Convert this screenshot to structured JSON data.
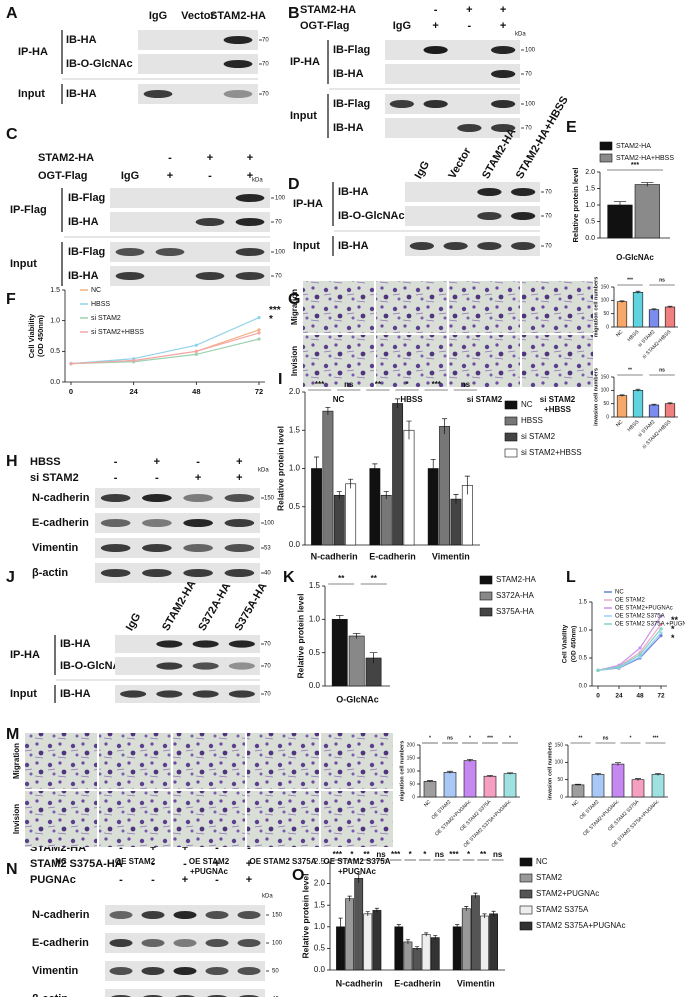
{
  "panels": [
    {
      "letter": "A",
      "headers": [
        "IgG",
        "Vector",
        "STAM2-HA"
      ],
      "groups": [
        {
          "name": "IP-HA",
          "rows": [
            "IB-HA",
            "IB-O-GlcNAc"
          ]
        },
        {
          "name": "Input",
          "rows": [
            "IB-HA"
          ]
        }
      ],
      "mw": [
        "70",
        "70",
        "70"
      ]
    },
    {
      "letter": "B",
      "treatments": [
        {
          "name": "STAM2-HA",
          "signs": [
            null,
            "-",
            "+",
            "+"
          ]
        },
        {
          "name": "OGT-Flag",
          "signs": [
            "IgG",
            "+",
            "-",
            "+"
          ]
        }
      ],
      "units": "kDa",
      "groups": [
        {
          "name": "IP-HA",
          "rows": [
            "IB-Flag",
            "IB-HA"
          ]
        },
        {
          "name": "Input",
          "rows": [
            "IB-Flag",
            "IB-HA"
          ]
        }
      ],
      "mw": [
        "100",
        "70",
        "100",
        "70"
      ]
    },
    {
      "letter": "C",
      "treatments": [
        {
          "name": "STAM2-HA",
          "signs": [
            null,
            "-",
            "+",
            "+"
          ]
        },
        {
          "name": "OGT-Flag",
          "signs": [
            "IgG",
            "+",
            "-",
            "+"
          ]
        }
      ],
      "units": "kDa",
      "groups": [
        {
          "name": "IP-Flag",
          "rows": [
            "IB-Flag",
            "IB-HA"
          ]
        },
        {
          "name": "Input",
          "rows": [
            "IB-Flag",
            "IB-HA"
          ]
        }
      ],
      "mw": [
        "100",
        "70",
        "100",
        "70"
      ]
    },
    {
      "letter": "D",
      "headers": [
        "IgG",
        "Vector",
        "STAM2-HA",
        "STAM2-HA+HBSS"
      ],
      "groups": [
        {
          "name": "IP-HA",
          "rows": [
            "IB-HA",
            "IB-O-GlcNAc"
          ]
        },
        {
          "name": "Input",
          "rows": [
            "IB-HA"
          ]
        }
      ],
      "mw": [
        "70",
        "70",
        "70"
      ]
    },
    {
      "letter": "H",
      "treatments": [
        {
          "name": "HBSS",
          "signs": [
            "-",
            "+",
            "-",
            "+"
          ]
        },
        {
          "name": "si STAM2",
          "signs": [
            "-",
            "-",
            "+",
            "+"
          ]
        }
      ],
      "units": "kDa",
      "groups": [
        {
          "rows": [
            "N-cadherin",
            "E-cadherin",
            "Vimentin",
            "β-actin"
          ]
        }
      ],
      "mw": [
        "150",
        "100",
        "53",
        "40"
      ]
    },
    {
      "letter": "J",
      "headers": [
        "IgG",
        "STAM2-HA",
        "S372A-HA",
        "S375A-HA"
      ],
      "groups": [
        {
          "name": "IP-HA",
          "rows": [
            "IB-HA",
            "IB-O-GlcNAc"
          ]
        },
        {
          "name": "Input",
          "rows": [
            "IB-HA"
          ]
        }
      ],
      "mw": [
        "70",
        "70",
        "70"
      ]
    },
    {
      "letter": "N",
      "treatments": [
        {
          "name": "STAM2-HA",
          "signs": [
            "-",
            "+",
            "+",
            "-",
            "-"
          ]
        },
        {
          "name": "STAM2 S375A-HA",
          "signs": [
            "-",
            "-",
            "-",
            "+",
            "+"
          ]
        },
        {
          "name": "PUGNAc",
          "signs": [
            "-",
            "-",
            "+",
            "-",
            "+"
          ]
        }
      ],
      "units": "kDa",
      "groups": [
        {
          "rows": [
            "N-cadherin",
            "E-cadherin",
            "Vimentin",
            "β-actin"
          ]
        }
      ],
      "mw": [
        "150",
        "100",
        "50",
        "40"
      ]
    }
  ],
  "image_panels": [
    {
      "letter": "G",
      "rows": [
        "Migration",
        "Invision"
      ],
      "columns": [
        [
          "NC"
        ],
        [
          "HBSS"
        ],
        [
          "si STAM2"
        ],
        [
          "si STAM2",
          "+HBSS"
        ]
      ]
    },
    {
      "letter": "M",
      "rows": [
        "Migration",
        "Invision"
      ],
      "columns": [
        [
          "NC"
        ],
        [
          "OE STAM2"
        ],
        [
          "OE STAM2",
          "+PUGNAc"
        ],
        [
          "OE STAM2 S375A"
        ],
        [
          "OE STAM2 S375A",
          "+PUGNAc"
        ]
      ]
    }
  ],
  "chart_data": [
    {
      "type": "bar",
      "panel_label": "E",
      "ylabel": [
        "Relative protein level"
      ],
      "categories": [
        "O-GlcNAc"
      ],
      "legend": "top",
      "series": [
        {
          "name": "STAM2-HA",
          "color": "#111111",
          "values": [
            1.0
          ],
          "errors": [
            0.1
          ]
        },
        {
          "name": "STAM2-HA+HBSS",
          "color": "#8a8a8a",
          "values": [
            1.62
          ],
          "errors": [
            0.06
          ]
        }
      ],
      "ylim": [
        0,
        2
      ],
      "yticks": [
        {
          "value": 0,
          "label": "0.0"
        },
        0.5,
        {
          "value": 1,
          "label": "1.0"
        },
        1.5,
        {
          "value": 2,
          "label": "2.0"
        }
      ],
      "annotations": [
        "***"
      ]
    },
    {
      "type": "line",
      "panel_label": "F",
      "ylabel": [
        "Cell Viability",
        "(OD 450nm)"
      ],
      "x": [
        0,
        24,
        48,
        72
      ],
      "xlim": [
        0,
        72
      ],
      "xticks": [
        0,
        24,
        48,
        72
      ],
      "legend": "top-left",
      "series": [
        {
          "name": "NC",
          "color": "#f4b183",
          "values": [
            0.3,
            0.35,
            0.5,
            0.85
          ]
        },
        {
          "name": "HBSS",
          "color": "#8fd3e8",
          "values": [
            0.3,
            0.38,
            0.6,
            1.05
          ]
        },
        {
          "name": "si STAM2",
          "color": "#9bd3b0",
          "values": [
            0.3,
            0.33,
            0.45,
            0.7
          ]
        },
        {
          "name": "si STAM2+HBSS",
          "color": "#f4a6a6",
          "values": [
            0.3,
            0.35,
            0.5,
            0.8
          ]
        }
      ],
      "ylim": [
        0,
        1.5
      ],
      "yticks": [
        {
          "value": 0,
          "label": "0.0"
        },
        0.5,
        {
          "value": 1,
          "label": "1.0"
        },
        1.5
      ],
      "annotations": [
        "***",
        "*"
      ]
    },
    {
      "type": "bar",
      "ylabel": [
        "migration cell numbers"
      ],
      "categories": [
        "NC",
        "HBSS",
        "si STAM2",
        "si STAM2+HBSS"
      ],
      "values": [
        95,
        130,
        65,
        75
      ],
      "errors": [
        3,
        4,
        3,
        3
      ],
      "colors": [
        "#f6a86b",
        "#5fd4e0",
        "#7b8ef0",
        "#f08080"
      ],
      "ylim": [
        0,
        150
      ],
      "yticks": [
        0,
        50,
        100,
        150
      ],
      "annotations": [
        "***",
        "ns"
      ]
    },
    {
      "type": "bar",
      "ylabel": [
        "invasion cell numbers"
      ],
      "categories": [
        "NC",
        "HBSS",
        "si STAM2",
        "si STAM2+HBSS"
      ],
      "values": [
        80,
        100,
        45,
        50
      ],
      "errors": [
        3,
        4,
        3,
        3
      ],
      "colors": [
        "#f6a86b",
        "#5fd4e0",
        "#7b8ef0",
        "#f08080"
      ],
      "ylim": [
        0,
        150
      ],
      "yticks": [
        0,
        50,
        100,
        150
      ],
      "annotations": [
        "**",
        "ns"
      ]
    },
    {
      "type": "bar",
      "panel_label": "I",
      "ylabel": [
        "Relative protein level"
      ],
      "categories": [
        "N-cadherin",
        "E-cadherin",
        "Vimentin"
      ],
      "legend": "right",
      "series": [
        {
          "name": "NC",
          "color": "#111111",
          "values": [
            1.0,
            1.0,
            1.0
          ],
          "errors": [
            0.15,
            0.06,
            0.12
          ]
        },
        {
          "name": "HBSS",
          "color": "#777777",
          "values": [
            1.75,
            0.65,
            1.55
          ],
          "errors": [
            0.05,
            0.05,
            0.1
          ]
        },
        {
          "name": "si STAM2",
          "color": "#444444",
          "values": [
            0.65,
            1.85,
            0.6
          ],
          "errors": [
            0.05,
            0.06,
            0.06
          ]
        },
        {
          "name": "si STAM2+HBSS",
          "color": "#ffffff",
          "values": [
            0.8,
            1.5,
            0.78
          ],
          "errors": [
            0.06,
            0.12,
            0.12
          ]
        }
      ],
      "ylim": [
        0,
        2
      ],
      "yticks": [
        {
          "value": 0,
          "label": "0.0"
        },
        0.5,
        {
          "value": 1,
          "label": "1.0"
        },
        1.5,
        {
          "value": 2,
          "label": "2.0"
        }
      ],
      "annotations": [
        "***",
        "ns",
        "**",
        "*",
        "***",
        "ns"
      ]
    },
    {
      "type": "bar",
      "panel_label": "K",
      "ylabel": [
        "Relative protein level"
      ],
      "categories": [
        "O-GlcNAc"
      ],
      "legend": "right",
      "series": [
        {
          "name": "STAM2-HA",
          "color": "#111111",
          "values": [
            1.0
          ],
          "errors": [
            0.06
          ]
        },
        {
          "name": "S372A-HA",
          "color": "#888888",
          "values": [
            0.75
          ],
          "errors": [
            0.04
          ]
        },
        {
          "name": "S375A-HA",
          "color": "#444444",
          "values": [
            0.42
          ],
          "errors": [
            0.08
          ]
        }
      ],
      "ylim": [
        0,
        1.5
      ],
      "yticks": [
        {
          "value": 0,
          "label": "0.0"
        },
        0.5,
        {
          "value": 1,
          "label": "1.0"
        },
        1.5
      ],
      "annotations": [
        "**",
        "**"
      ]
    },
    {
      "type": "line",
      "panel_label": "L",
      "ylabel": [
        "Cell Viability",
        "(OD 450nm)"
      ],
      "x": [
        0,
        24,
        48,
        72
      ],
      "xlim": [
        0,
        72
      ],
      "xticks": [
        0,
        24,
        48,
        72
      ],
      "legend": "top-left",
      "series": [
        {
          "name": "NC",
          "color": "#6a7fd8",
          "values": [
            0.28,
            0.32,
            0.5,
            0.9
          ]
        },
        {
          "name": "OE STAM2",
          "color": "#f1a7c9",
          "values": [
            0.28,
            0.35,
            0.6,
            1.1
          ]
        },
        {
          "name": "OE STAM2+PUGNAc",
          "color": "#c792ea",
          "values": [
            0.28,
            0.37,
            0.68,
            1.25
          ]
        },
        {
          "name": "OE STAM2 S375A",
          "color": "#9ad0f5",
          "values": [
            0.28,
            0.33,
            0.52,
            0.95
          ]
        },
        {
          "name": "OE STAM2 S375A +PUGNAc",
          "color": "#7fd6c4",
          "values": [
            0.28,
            0.34,
            0.56,
            1.02
          ]
        }
      ],
      "ylim": [
        0,
        1.5
      ],
      "yticks": [
        {
          "value": 0,
          "label": "0.0"
        },
        0.5,
        {
          "value": 1,
          "label": "1.0"
        },
        1.5
      ],
      "annotations": [
        "**",
        "*",
        "*"
      ]
    },
    {
      "type": "bar",
      "ylabel": [
        "migration cell numbers"
      ],
      "categories": [
        "NC",
        "OE STAM2",
        "OE STAM2+PUGNAc",
        "OE STAM2 S375A",
        "OE STAM2 S375A+PUGNAc"
      ],
      "values": [
        60,
        95,
        140,
        80,
        90
      ],
      "errors": [
        3,
        4,
        5,
        3,
        3
      ],
      "colors": [
        "#9e9e9e",
        "#a9c8f5",
        "#c488f0",
        "#f5a0c0",
        "#9fe0e0"
      ],
      "ylim": [
        0,
        200
      ],
      "yticks": [
        0,
        50,
        100,
        150,
        200
      ],
      "annotations": [
        "*",
        "ns",
        "*",
        "***",
        "*"
      ]
    },
    {
      "type": "bar",
      "ylabel": [
        "invasion cell numbers"
      ],
      "categories": [
        "NC",
        "OE STAM2",
        "OE STAM2+PUGNAc",
        "OE STAM2 S375A",
        "OE STAM2 S375A+PUGNAc"
      ],
      "values": [
        35,
        65,
        95,
        50,
        65
      ],
      "errors": [
        2,
        3,
        4,
        3,
        3
      ],
      "colors": [
        "#9e9e9e",
        "#a9c8f5",
        "#c488f0",
        "#f5a0c0",
        "#9fe0e0"
      ],
      "ylim": [
        0,
        150
      ],
      "yticks": [
        0,
        50,
        100,
        150
      ],
      "annotations": [
        "**",
        "ns",
        "*",
        "***"
      ]
    },
    {
      "type": "bar",
      "panel_label": "O",
      "ylabel": [
        "Relative protein level"
      ],
      "categories": [
        "N-cadherin",
        "E-cadherin",
        "Vimentin"
      ],
      "legend": "right",
      "series": [
        {
          "name": "NC",
          "color": "#111111",
          "values": [
            1.0,
            1.0,
            1.0
          ],
          "errors": [
            0.2,
            0.05,
            0.05
          ]
        },
        {
          "name": "STAM2",
          "color": "#999999",
          "values": [
            1.65,
            0.65,
            1.42
          ],
          "errors": [
            0.06,
            0.05,
            0.05
          ]
        },
        {
          "name": "STAM2+PUGNAc",
          "color": "#555555",
          "values": [
            2.12,
            0.5,
            1.72
          ],
          "errors": [
            0.1,
            0.04,
            0.06
          ]
        },
        {
          "name": "STAM2 S375A",
          "color": "#eeeeee",
          "values": [
            1.3,
            0.82,
            1.25
          ],
          "errors": [
            0.05,
            0.04,
            0.05
          ]
        },
        {
          "name": "STAM2 S375A+PUGNAc",
          "color": "#333333",
          "values": [
            1.38,
            0.75,
            1.3
          ],
          "errors": [
            0.05,
            0.05,
            0.06
          ]
        }
      ],
      "ylim": [
        0,
        2.5
      ],
      "yticks": [
        {
          "value": 0,
          "label": "0.0"
        },
        0.5,
        {
          "value": 1,
          "label": "1.0"
        },
        1.5,
        {
          "value": 2,
          "label": "2.0"
        },
        2.5
      ],
      "annotations": [
        "***",
        "*",
        "**",
        "ns",
        "***",
        "*",
        "*",
        "ns",
        "***",
        "*",
        "**",
        "ns"
      ]
    }
  ]
}
